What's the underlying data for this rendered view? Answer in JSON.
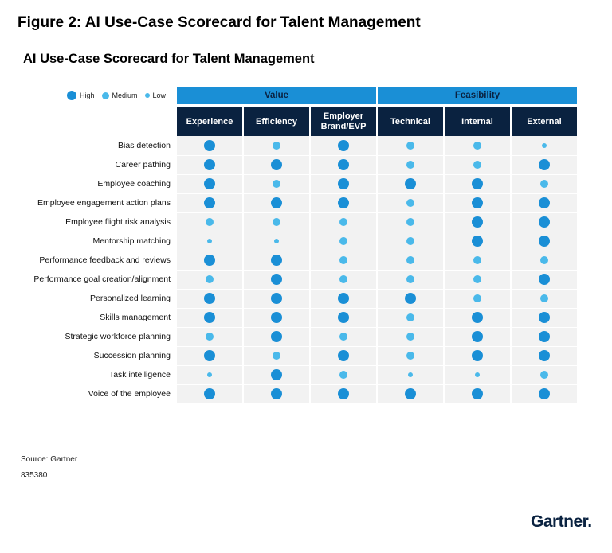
{
  "figure_title": "Figure 2: AI Use-Case Scorecard for Talent Management",
  "source": "Source: Gartner",
  "doc_id": "835380",
  "brand": "Gartner.",
  "colors": {
    "group_header_bg": "#1a8fd6",
    "column_header_bg": "#0a2240",
    "dot": "#1a8fd6",
    "dot_light": "#4ab9ea",
    "column_bg": "#f2f2f2"
  },
  "chart_data": {
    "type": "table",
    "title": "AI Use-Case Scorecard for Talent Management",
    "legend": {
      "placement": "top-left",
      "levels": [
        {
          "label": "High",
          "value": 3
        },
        {
          "label": "Medium",
          "value": 2
        },
        {
          "label": "Low",
          "value": 1
        }
      ]
    },
    "groups": [
      {
        "label": "Value",
        "columns": [
          "Experience",
          "Efficiency",
          "Employer Brand/EVP"
        ]
      },
      {
        "label": "Feasibility",
        "columns": [
          "Technical",
          "Internal",
          "External"
        ]
      }
    ],
    "columns": [
      "Experience",
      "Efficiency",
      "Employer Brand/EVP",
      "Technical",
      "Internal",
      "External"
    ],
    "rows": [
      {
        "label": "Bias detection",
        "values": [
          "High",
          "Medium",
          "High",
          "Medium",
          "Medium",
          "Low"
        ]
      },
      {
        "label": "Career pathing",
        "values": [
          "High",
          "High",
          "High",
          "Medium",
          "Medium",
          "High"
        ]
      },
      {
        "label": "Employee coaching",
        "values": [
          "High",
          "Medium",
          "High",
          "High",
          "High",
          "Medium"
        ]
      },
      {
        "label": "Employee engagement action plans",
        "values": [
          "High",
          "High",
          "High",
          "Medium",
          "High",
          "High"
        ]
      },
      {
        "label": "Employee flight risk analysis",
        "values": [
          "Medium",
          "Medium",
          "Medium",
          "Medium",
          "High",
          "High"
        ]
      },
      {
        "label": "Mentorship matching",
        "values": [
          "Low",
          "Low",
          "Medium",
          "Medium",
          "High",
          "High"
        ]
      },
      {
        "label": "Performance feedback and reviews",
        "values": [
          "High",
          "High",
          "Medium",
          "Medium",
          "Medium",
          "Medium"
        ]
      },
      {
        "label": "Performance goal creation/alignment",
        "values": [
          "Medium",
          "High",
          "Medium",
          "Medium",
          "Medium",
          "High"
        ]
      },
      {
        "label": "Personalized learning",
        "values": [
          "High",
          "High",
          "High",
          "High",
          "Medium",
          "Medium"
        ]
      },
      {
        "label": "Skills management",
        "values": [
          "High",
          "High",
          "High",
          "Medium",
          "High",
          "High"
        ]
      },
      {
        "label": "Strategic workforce planning",
        "values": [
          "Medium",
          "High",
          "Medium",
          "Medium",
          "High",
          "High"
        ]
      },
      {
        "label": "Succession planning",
        "values": [
          "High",
          "Medium",
          "High",
          "Medium",
          "High",
          "High"
        ]
      },
      {
        "label": "Task intelligence",
        "values": [
          "Low",
          "High",
          "Medium",
          "Low",
          "Low",
          "Medium"
        ]
      },
      {
        "label": "Voice of the employee",
        "values": [
          "High",
          "High",
          "High",
          "High",
          "High",
          "High"
        ]
      }
    ]
  }
}
